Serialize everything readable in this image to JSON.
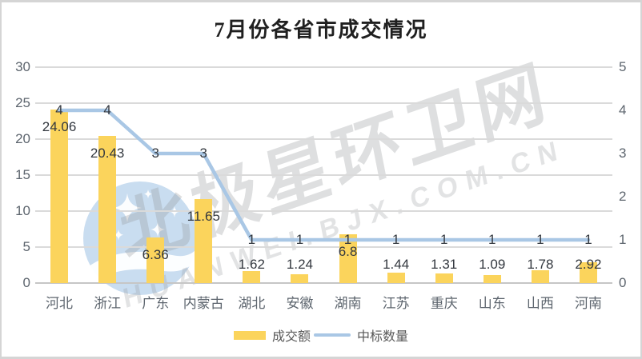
{
  "title": "7月份各省市成交情况",
  "legend": {
    "bar_label": "成交额",
    "line_label": "中标数量"
  },
  "watermark": {
    "logo": "bjx-star-moon-logo",
    "text_cn": "北极星环卫网",
    "text_en": "HUANWEI.BJX.COM.CN"
  },
  "chart_data": {
    "type": "combo-bar-line",
    "title": "7月份各省市成交情况",
    "categories": [
      "河北",
      "浙江",
      "广东",
      "内蒙古",
      "湖北",
      "安徽",
      "湖南",
      "江苏",
      "重庆",
      "山东",
      "山西",
      "河南"
    ],
    "series": [
      {
        "name": "成交额",
        "type": "bar",
        "axis": "left",
        "color": "#FBD45C",
        "values": [
          24.06,
          20.43,
          6.36,
          11.65,
          1.62,
          1.24,
          6.8,
          1.44,
          1.31,
          1.09,
          1.78,
          2.92
        ]
      },
      {
        "name": "中标数量",
        "type": "line",
        "axis": "right",
        "color": "#A9C7E5",
        "values": [
          4,
          4,
          3,
          3,
          1,
          1,
          1,
          1,
          1,
          1,
          1,
          1
        ]
      }
    ],
    "left_axis": {
      "min": 0,
      "max": 30,
      "step": 5,
      "ticks": [
        0,
        5,
        10,
        15,
        20,
        25,
        30
      ]
    },
    "right_axis": {
      "min": 0,
      "max": 5,
      "step": 1,
      "ticks": [
        0,
        1,
        2,
        3,
        4,
        5
      ]
    },
    "grid": true,
    "legend_position": "bottom",
    "data_labels": true
  },
  "colors": {
    "bar": "#FBD45C",
    "line": "#A9C7E5",
    "grid": "#DADADA",
    "tick_text": "#5D656E",
    "data_label": "#33383F",
    "watermark_blue": "#BBD5EC"
  }
}
